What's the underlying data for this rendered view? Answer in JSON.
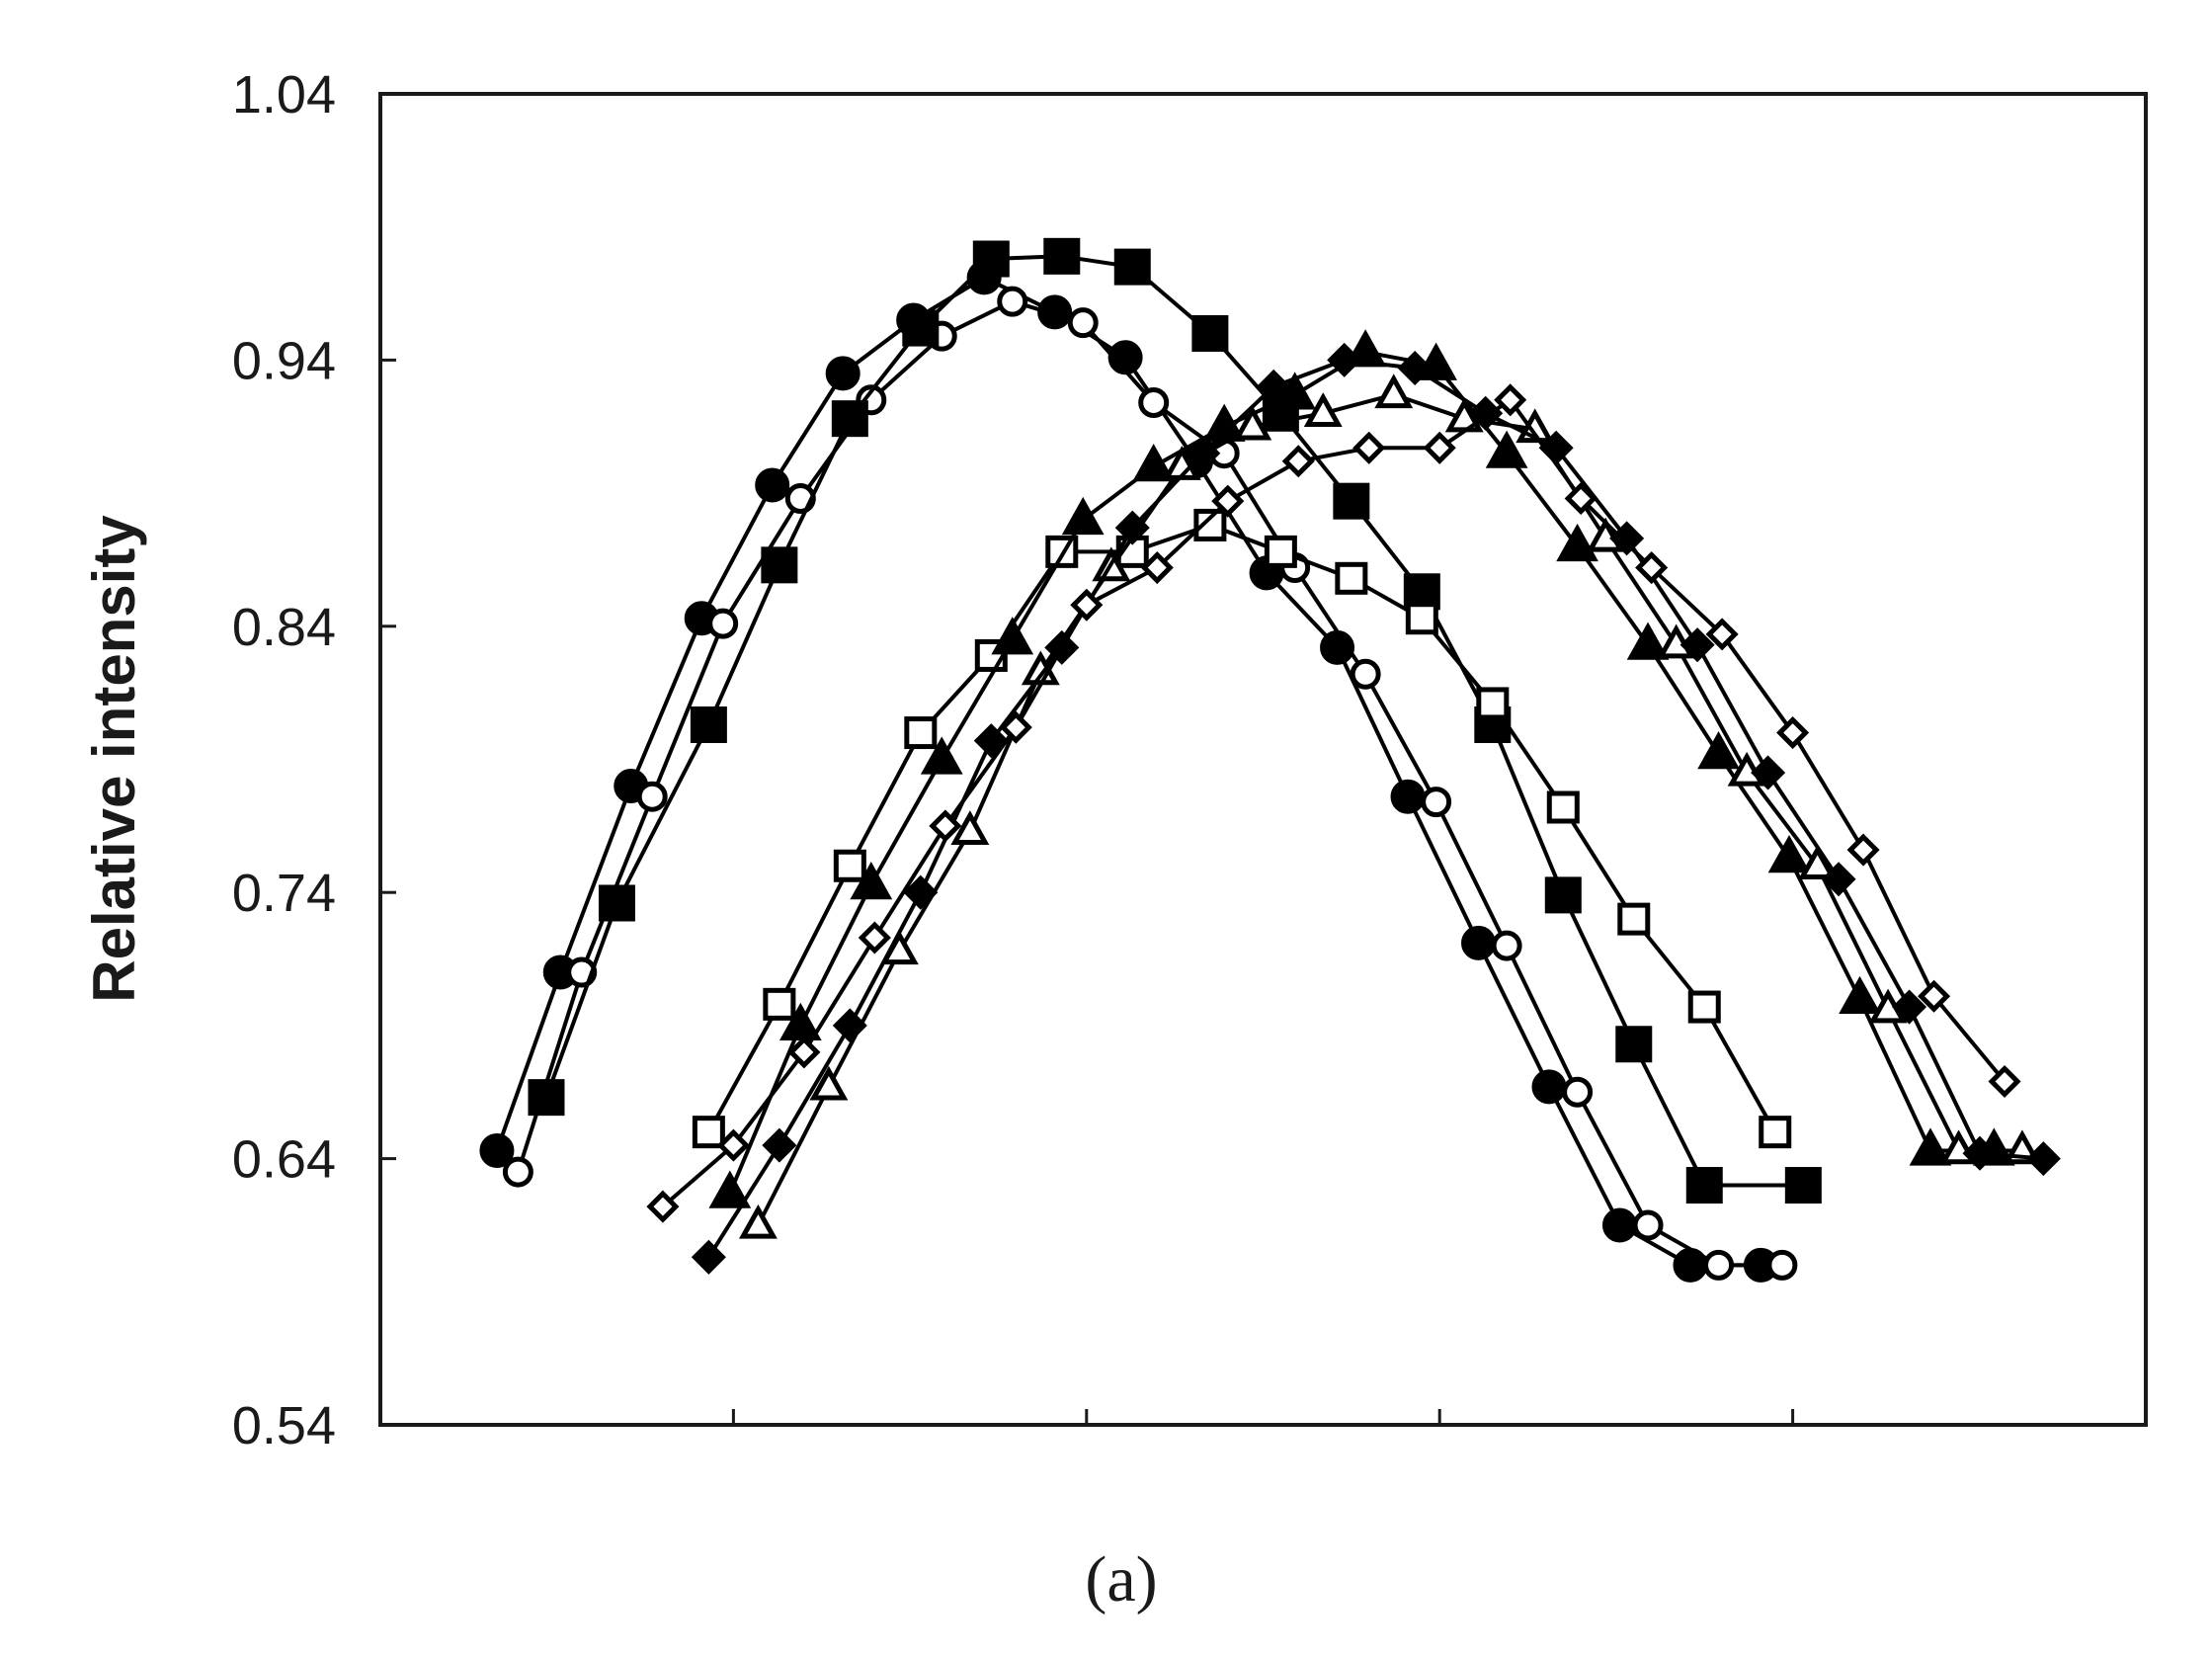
{
  "chart_data": {
    "type": "line",
    "title": "",
    "xlabel": "",
    "ylabel": "Relative intensity",
    "caption": "(a)",
    "xlim": [
      -0.35,
      4.65
    ],
    "ylim": [
      0.54,
      1.04
    ],
    "yticks": [
      "0.54",
      "0.64",
      "0.74",
      "0.84",
      "0.94",
      "1.04"
    ],
    "xticks": [
      0.65,
      1.65,
      2.65,
      3.65
    ],
    "grid": false,
    "legend": "none",
    "series": [
      {
        "marker": "circle-filled",
        "x": [
          -0.02,
          0.16,
          0.36,
          0.56,
          0.76,
          0.96,
          1.16,
          1.36,
          1.56,
          1.76,
          1.96,
          2.16,
          2.36,
          2.56,
          2.76,
          2.96,
          3.16,
          3.36,
          3.56
        ],
        "y": [
          0.643,
          0.71,
          0.78,
          0.843,
          0.893,
          0.935,
          0.955,
          0.971,
          0.958,
          0.941,
          0.902,
          0.86,
          0.832,
          0.776,
          0.721,
          0.667,
          0.615,
          0.6,
          0.6
        ]
      },
      {
        "marker": "circle-open",
        "x": [
          0.04,
          0.22,
          0.42,
          0.62,
          0.84,
          1.04,
          1.24,
          1.44,
          1.64,
          1.84,
          2.04,
          2.24,
          2.44,
          2.64,
          2.84,
          3.04,
          3.24,
          3.44,
          3.62
        ],
        "y": [
          0.635,
          0.71,
          0.776,
          0.841,
          0.888,
          0.925,
          0.949,
          0.962,
          0.954,
          0.924,
          0.905,
          0.862,
          0.822,
          0.774,
          0.72,
          0.665,
          0.615,
          0.6,
          0.6
        ]
      },
      {
        "marker": "square-filled",
        "x": [
          0.12,
          0.32,
          0.58,
          0.78,
          0.98,
          1.18,
          1.38,
          1.58,
          1.78,
          2.0,
          2.2,
          2.4,
          2.6,
          2.8,
          3.0,
          3.2,
          3.4,
          3.68
        ],
        "y": [
          0.663,
          0.736,
          0.803,
          0.863,
          0.918,
          0.952,
          0.978,
          0.979,
          0.975,
          0.95,
          0.92,
          0.887,
          0.853,
          0.803,
          0.739,
          0.683,
          0.63,
          0.63
        ]
      },
      {
        "marker": "square-open",
        "x": [
          0.58,
          0.78,
          0.98,
          1.18,
          1.38,
          1.58,
          1.78,
          2.0,
          2.2,
          2.4,
          2.6,
          2.8,
          3.0,
          3.2,
          3.4,
          3.6
        ],
        "y": [
          0.65,
          0.698,
          0.75,
          0.8,
          0.829,
          0.868,
          0.868,
          0.878,
          0.868,
          0.858,
          0.843,
          0.811,
          0.772,
          0.73,
          0.697,
          0.65
        ]
      },
      {
        "marker": "triangle-filled",
        "x": [
          0.64,
          0.84,
          1.04,
          1.24,
          1.44,
          1.64,
          1.84,
          2.04,
          2.24,
          2.44,
          2.64,
          2.84,
          3.04,
          3.24,
          3.44,
          3.64,
          3.84,
          4.04,
          4.22
        ],
        "y": [
          0.627,
          0.69,
          0.743,
          0.79,
          0.835,
          0.88,
          0.9,
          0.915,
          0.927,
          0.943,
          0.938,
          0.905,
          0.87,
          0.833,
          0.792,
          0.753,
          0.7,
          0.643,
          0.643
        ]
      },
      {
        "marker": "triangle-open",
        "x": [
          0.72,
          0.92,
          1.12,
          1.32,
          1.52,
          1.72,
          1.92,
          2.12,
          2.32,
          2.52,
          2.72,
          2.92,
          3.12,
          3.32,
          3.52,
          3.72,
          3.92,
          4.12,
          4.3
        ],
        "y": [
          0.615,
          0.667,
          0.718,
          0.763,
          0.823,
          0.862,
          0.9,
          0.915,
          0.92,
          0.927,
          0.918,
          0.914,
          0.873,
          0.833,
          0.785,
          0.75,
          0.696,
          0.643,
          0.643
        ]
      },
      {
        "marker": "diamond-filled",
        "x": [
          0.58,
          0.78,
          0.98,
          1.18,
          1.38,
          1.58,
          1.78,
          1.98,
          2.18,
          2.38,
          2.58,
          2.78,
          2.98,
          3.18,
          3.38,
          3.58,
          3.78,
          3.98,
          4.18,
          4.36
        ],
        "y": [
          0.603,
          0.645,
          0.69,
          0.74,
          0.797,
          0.832,
          0.877,
          0.905,
          0.93,
          0.94,
          0.937,
          0.92,
          0.907,
          0.873,
          0.833,
          0.785,
          0.745,
          0.697,
          0.642,
          0.64
        ]
      },
      {
        "marker": "diamond-open",
        "x": [
          0.45,
          0.65,
          0.85,
          1.05,
          1.25,
          1.45,
          1.65,
          1.85,
          2.05,
          2.25,
          2.45,
          2.65,
          2.85,
          3.05,
          3.25,
          3.45,
          3.65,
          3.85,
          4.05,
          4.25
        ],
        "y": [
          0.622,
          0.645,
          0.68,
          0.723,
          0.765,
          0.802,
          0.848,
          0.862,
          0.887,
          0.902,
          0.907,
          0.907,
          0.925,
          0.888,
          0.862,
          0.837,
          0.8,
          0.756,
          0.701,
          0.669
        ]
      }
    ]
  }
}
